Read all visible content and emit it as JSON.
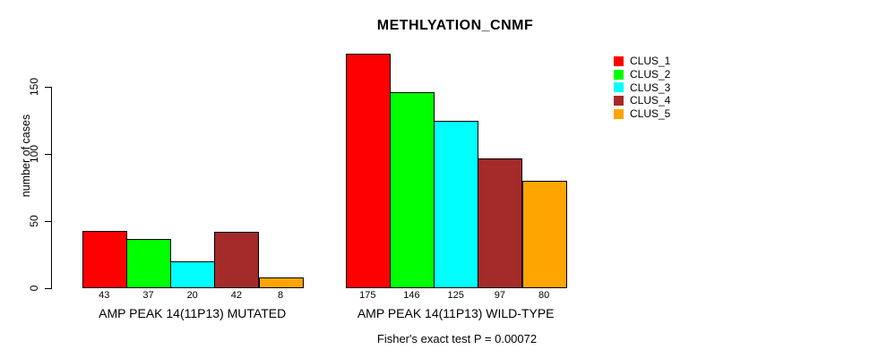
{
  "chart_data": {
    "type": "bar",
    "title": "METHLYATION_CNMF",
    "ylabel": "number of cases",
    "xlabel": "",
    "caption": "Fisher's exact test P = 0.00072",
    "categories": [
      "AMP PEAK 14(11P13) MUTATED",
      "AMP PEAK 14(11P13) WILD-TYPE"
    ],
    "series": [
      {
        "name": "CLUS_1",
        "color": "#ff0000",
        "values": [
          43,
          175
        ]
      },
      {
        "name": "CLUS_2",
        "color": "#00ff00",
        "values": [
          37,
          146
        ]
      },
      {
        "name": "CLUS_3",
        "color": "#00ffff",
        "values": [
          20,
          125
        ]
      },
      {
        "name": "CLUS_4",
        "color": "#a52a2a",
        "values": [
          42,
          97
        ]
      },
      {
        "name": "CLUS_5",
        "color": "#ffa500",
        "values": [
          8,
          80
        ]
      }
    ],
    "y_ticks": [
      0,
      50,
      100,
      150
    ],
    "ylim": [
      0,
      175
    ],
    "grid": false,
    "legend_position": "right",
    "bar_border_color": "#000000",
    "background": "#ffffff",
    "value_labels_shown": true
  }
}
